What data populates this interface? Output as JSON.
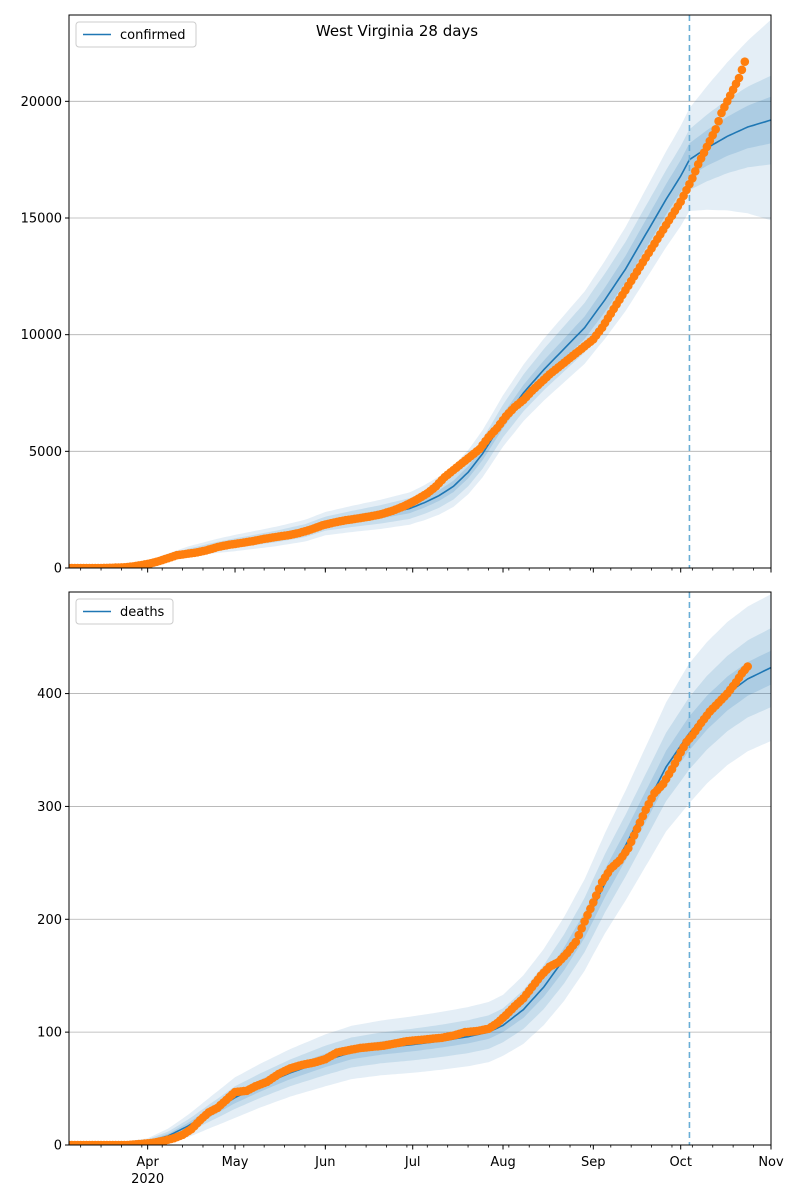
{
  "figure": {
    "title": "West Virginia 28 days"
  },
  "chart_data": [
    {
      "type": "line",
      "name": "confirmed",
      "legend": {
        "label": "confirmed",
        "placement": "top-left"
      },
      "x_axis": {
        "type": "date",
        "range": [
          "2020-03-05",
          "2020-11-01"
        ],
        "major_ticks": [
          {
            "date": "2020-04-01",
            "label": "Apr",
            "sublabel": "2020"
          },
          {
            "date": "2020-05-01",
            "label": "May"
          },
          {
            "date": "2020-06-01",
            "label": "Jun"
          },
          {
            "date": "2020-07-01",
            "label": "Jul"
          },
          {
            "date": "2020-08-01",
            "label": "Aug"
          },
          {
            "date": "2020-09-01",
            "label": "Sep"
          },
          {
            "date": "2020-10-01",
            "label": "Oct"
          },
          {
            "date": "2020-11-01",
            "label": "Nov"
          }
        ],
        "tick_labels_shown": false
      },
      "y_axis": {
        "range": [
          0,
          23700
        ],
        "ticks": [
          0,
          5000,
          10000,
          15000,
          20000
        ],
        "tick_labels": [
          "0",
          "5000",
          "10000",
          "15000",
          "20000"
        ],
        "grid": true
      },
      "forecast_date": "2020-10-04",
      "colors": {
        "model": "#1f77b4",
        "observed": "#ff7f0e",
        "band": "#1f77b4",
        "forecast_line": "#6aaed6"
      },
      "model_curve": [
        [
          "2020-03-05",
          0
        ],
        [
          "2020-03-25",
          30
        ],
        [
          "2020-04-01",
          200
        ],
        [
          "2020-04-08",
          450
        ],
        [
          "2020-04-15",
          700
        ],
        [
          "2020-04-25",
          950
        ],
        [
          "2020-05-05",
          1150
        ],
        [
          "2020-05-15",
          1350
        ],
        [
          "2020-05-25",
          1600
        ],
        [
          "2020-06-01",
          1900
        ],
        [
          "2020-06-10",
          2100
        ],
        [
          "2020-06-20",
          2300
        ],
        [
          "2020-06-30",
          2550
        ],
        [
          "2020-07-05",
          2800
        ],
        [
          "2020-07-10",
          3100
        ],
        [
          "2020-07-15",
          3500
        ],
        [
          "2020-07-20",
          4100
        ],
        [
          "2020-07-25",
          4900
        ],
        [
          "2020-08-01",
          6300
        ],
        [
          "2020-08-08",
          7500
        ],
        [
          "2020-08-15",
          8500
        ],
        [
          "2020-08-22",
          9400
        ],
        [
          "2020-08-29",
          10300
        ],
        [
          "2020-09-05",
          11500
        ],
        [
          "2020-09-12",
          12800
        ],
        [
          "2020-09-19",
          14300
        ],
        [
          "2020-09-26",
          15800
        ],
        [
          "2020-10-01",
          16800
        ],
        [
          "2020-10-04",
          17500
        ],
        [
          "2020-10-10",
          18000
        ],
        [
          "2020-10-17",
          18500
        ],
        [
          "2020-10-24",
          18900
        ],
        [
          "2020-11-01",
          19200
        ]
      ],
      "band_widths": {
        "dates": [
          "2020-03-05",
          "2020-04-01",
          "2020-05-01",
          "2020-06-01",
          "2020-07-01",
          "2020-08-01",
          "2020-09-01",
          "2020-10-04",
          "2020-11-01"
        ],
        "inner": [
          0,
          30,
          100,
          150,
          200,
          300,
          500,
          700,
          1000
        ],
        "middle": [
          0,
          70,
          200,
          300,
          450,
          700,
          1100,
          1300,
          1900
        ],
        "outer": [
          0,
          120,
          350,
          500,
          700,
          1100,
          1600,
          2200,
          4300
        ]
      },
      "observed": [
        [
          "2020-03-05",
          0
        ],
        [
          "2020-03-10",
          0
        ],
        [
          "2020-03-15",
          0
        ],
        [
          "2020-03-20",
          10
        ],
        [
          "2020-03-24",
          30
        ],
        [
          "2020-03-27",
          70
        ],
        [
          "2020-03-30",
          130
        ],
        [
          "2020-04-02",
          200
        ],
        [
          "2020-04-05",
          300
        ],
        [
          "2020-04-08",
          420
        ],
        [
          "2020-04-11",
          550
        ],
        [
          "2020-04-14",
          600
        ],
        [
          "2020-04-17",
          650
        ],
        [
          "2020-04-21",
          750
        ],
        [
          "2020-04-25",
          900
        ],
        [
          "2020-04-29",
          1000
        ],
        [
          "2020-05-03",
          1070
        ],
        [
          "2020-05-07",
          1150
        ],
        [
          "2020-05-11",
          1250
        ],
        [
          "2020-05-15",
          1330
        ],
        [
          "2020-05-19",
          1400
        ],
        [
          "2020-05-23",
          1500
        ],
        [
          "2020-05-27",
          1650
        ],
        [
          "2020-05-31",
          1830
        ],
        [
          "2020-06-04",
          1950
        ],
        [
          "2020-06-08",
          2050
        ],
        [
          "2020-06-12",
          2120
        ],
        [
          "2020-06-16",
          2200
        ],
        [
          "2020-06-20",
          2300
        ],
        [
          "2020-06-24",
          2450
        ],
        [
          "2020-06-28",
          2650
        ],
        [
          "2020-07-02",
          2900
        ],
        [
          "2020-07-06",
          3200
        ],
        [
          "2020-07-09",
          3500
        ],
        [
          "2020-07-12",
          3900
        ],
        [
          "2020-07-15",
          4200
        ],
        [
          "2020-07-18",
          4500
        ],
        [
          "2020-07-21",
          4800
        ],
        [
          "2020-07-24",
          5100
        ],
        [
          "2020-07-27",
          5600
        ],
        [
          "2020-07-30",
          6000
        ],
        [
          "2020-08-02",
          6500
        ],
        [
          "2020-08-05",
          6900
        ],
        [
          "2020-08-08",
          7200
        ],
        [
          "2020-08-11",
          7600
        ],
        [
          "2020-08-14",
          7950
        ],
        [
          "2020-08-17",
          8300
        ],
        [
          "2020-08-20",
          8600
        ],
        [
          "2020-08-23",
          8900
        ],
        [
          "2020-08-26",
          9200
        ],
        [
          "2020-08-29",
          9500
        ],
        [
          "2020-09-01",
          9800
        ],
        [
          "2020-09-04",
          10300
        ],
        [
          "2020-09-07",
          10900
        ],
        [
          "2020-09-10",
          11500
        ],
        [
          "2020-09-13",
          12100
        ],
        [
          "2020-09-16",
          12700
        ],
        [
          "2020-09-19",
          13300
        ],
        [
          "2020-09-22",
          13900
        ],
        [
          "2020-09-25",
          14500
        ],
        [
          "2020-09-28",
          15100
        ],
        [
          "2020-10-01",
          15700
        ],
        [
          "2020-10-03",
          16200
        ],
        [
          "2020-10-05",
          16700
        ],
        [
          "2020-10-07",
          17300
        ],
        [
          "2020-10-09",
          17800
        ],
        [
          "2020-10-11",
          18300
        ],
        [
          "2020-10-13",
          18800
        ],
        [
          "2020-10-15",
          19500
        ],
        [
          "2020-10-17",
          20000
        ],
        [
          "2020-10-19",
          20500
        ],
        [
          "2020-10-21",
          21000
        ],
        [
          "2020-10-23",
          21700
        ]
      ]
    },
    {
      "type": "line",
      "name": "deaths",
      "legend": {
        "label": "deaths",
        "placement": "top-left"
      },
      "x_axis": {
        "type": "date",
        "range": [
          "2020-03-05",
          "2020-11-01"
        ],
        "major_ticks": [
          {
            "date": "2020-04-01",
            "label": "Apr",
            "sublabel": "2020"
          },
          {
            "date": "2020-05-01",
            "label": "May"
          },
          {
            "date": "2020-06-01",
            "label": "Jun"
          },
          {
            "date": "2020-07-01",
            "label": "Jul"
          },
          {
            "date": "2020-08-01",
            "label": "Aug"
          },
          {
            "date": "2020-09-01",
            "label": "Sep"
          },
          {
            "date": "2020-10-01",
            "label": "Oct"
          },
          {
            "date": "2020-11-01",
            "label": "Nov"
          }
        ],
        "tick_labels_shown": true
      },
      "y_axis": {
        "range": [
          0,
          490
        ],
        "ticks": [
          0,
          100,
          200,
          300,
          400
        ],
        "tick_labels": [
          "0",
          "100",
          "200",
          "300",
          "400"
        ],
        "grid": true
      },
      "forecast_date": "2020-10-04",
      "colors": {
        "model": "#1f77b4",
        "observed": "#ff7f0e",
        "band": "#1f77b4",
        "forecast_line": "#6aaed6"
      },
      "model_curve": [
        [
          "2020-03-05",
          0
        ],
        [
          "2020-03-25",
          1
        ],
        [
          "2020-04-01",
          3
        ],
        [
          "2020-04-08",
          8
        ],
        [
          "2020-04-15",
          17
        ],
        [
          "2020-04-22",
          28
        ],
        [
          "2020-05-01",
          42
        ],
        [
          "2020-05-10",
          53
        ],
        [
          "2020-05-20",
          64
        ],
        [
          "2020-06-01",
          75
        ],
        [
          "2020-06-10",
          82
        ],
        [
          "2020-06-20",
          86
        ],
        [
          "2020-07-01",
          89
        ],
        [
          "2020-07-10",
          92
        ],
        [
          "2020-07-20",
          96
        ],
        [
          "2020-07-27",
          100
        ],
        [
          "2020-08-01",
          106
        ],
        [
          "2020-08-08",
          120
        ],
        [
          "2020-08-15",
          140
        ],
        [
          "2020-08-22",
          165
        ],
        [
          "2020-08-29",
          195
        ],
        [
          "2020-09-05",
          232
        ],
        [
          "2020-09-12",
          265
        ],
        [
          "2020-09-19",
          300
        ],
        [
          "2020-09-26",
          335
        ],
        [
          "2020-10-04",
          365
        ],
        [
          "2020-10-10",
          383
        ],
        [
          "2020-10-17",
          400
        ],
        [
          "2020-10-24",
          413
        ],
        [
          "2020-11-01",
          423
        ]
      ],
      "band_widths": {
        "dates": [
          "2020-03-05",
          "2020-04-01",
          "2020-05-01",
          "2020-06-01",
          "2020-07-01",
          "2020-08-01",
          "2020-09-01",
          "2020-10-04",
          "2020-11-01"
        ],
        "inner": [
          0,
          1,
          5,
          6,
          6,
          6,
          12,
          15,
          15
        ],
        "middle": [
          0,
          2,
          10,
          13,
          14,
          15,
          25,
          32,
          35
        ],
        "outer": [
          0,
          3,
          18,
          23,
          25,
          27,
          42,
          62,
          65
        ]
      },
      "observed": [
        [
          "2020-03-05",
          0
        ],
        [
          "2020-03-10",
          0
        ],
        [
          "2020-03-15",
          0
        ],
        [
          "2020-03-20",
          0
        ],
        [
          "2020-03-25",
          0
        ],
        [
          "2020-03-30",
          1
        ],
        [
          "2020-04-03",
          2
        ],
        [
          "2020-04-07",
          4
        ],
        [
          "2020-04-10",
          6
        ],
        [
          "2020-04-13",
          9
        ],
        [
          "2020-04-16",
          14
        ],
        [
          "2020-04-19",
          22
        ],
        [
          "2020-04-22",
          29
        ],
        [
          "2020-04-25",
          33
        ],
        [
          "2020-04-28",
          40
        ],
        [
          "2020-05-01",
          47
        ],
        [
          "2020-05-05",
          48
        ],
        [
          "2020-05-08",
          52
        ],
        [
          "2020-05-12",
          56
        ],
        [
          "2020-05-16",
          63
        ],
        [
          "2020-05-20",
          68
        ],
        [
          "2020-05-24",
          71
        ],
        [
          "2020-05-28",
          73
        ],
        [
          "2020-06-01",
          76
        ],
        [
          "2020-06-05",
          82
        ],
        [
          "2020-06-09",
          84
        ],
        [
          "2020-06-13",
          86
        ],
        [
          "2020-06-17",
          87
        ],
        [
          "2020-06-21",
          88
        ],
        [
          "2020-06-25",
          90
        ],
        [
          "2020-06-29",
          92
        ],
        [
          "2020-07-03",
          93
        ],
        [
          "2020-07-07",
          94
        ],
        [
          "2020-07-11",
          95
        ],
        [
          "2020-07-15",
          97
        ],
        [
          "2020-07-19",
          100
        ],
        [
          "2020-07-23",
          101
        ],
        [
          "2020-07-27",
          103
        ],
        [
          "2020-07-30",
          108
        ],
        [
          "2020-08-02",
          115
        ],
        [
          "2020-08-05",
          123
        ],
        [
          "2020-08-08",
          130
        ],
        [
          "2020-08-11",
          140
        ],
        [
          "2020-08-14",
          150
        ],
        [
          "2020-08-17",
          158
        ],
        [
          "2020-08-20",
          162
        ],
        [
          "2020-08-23",
          170
        ],
        [
          "2020-08-26",
          180
        ],
        [
          "2020-08-29",
          198
        ],
        [
          "2020-09-01",
          215
        ],
        [
          "2020-09-04",
          233
        ],
        [
          "2020-09-07",
          245
        ],
        [
          "2020-09-10",
          252
        ],
        [
          "2020-09-13",
          263
        ],
        [
          "2020-09-16",
          280
        ],
        [
          "2020-09-19",
          297
        ],
        [
          "2020-09-22",
          312
        ],
        [
          "2020-09-25",
          320
        ],
        [
          "2020-09-28",
          333
        ],
        [
          "2020-10-01",
          348
        ],
        [
          "2020-10-03",
          357
        ],
        [
          "2020-10-05",
          363
        ],
        [
          "2020-10-08",
          374
        ],
        [
          "2020-10-11",
          384
        ],
        [
          "2020-10-14",
          392
        ],
        [
          "2020-10-17",
          400
        ],
        [
          "2020-10-20",
          410
        ],
        [
          "2020-10-22",
          418
        ],
        [
          "2020-10-24",
          424
        ]
      ]
    }
  ]
}
